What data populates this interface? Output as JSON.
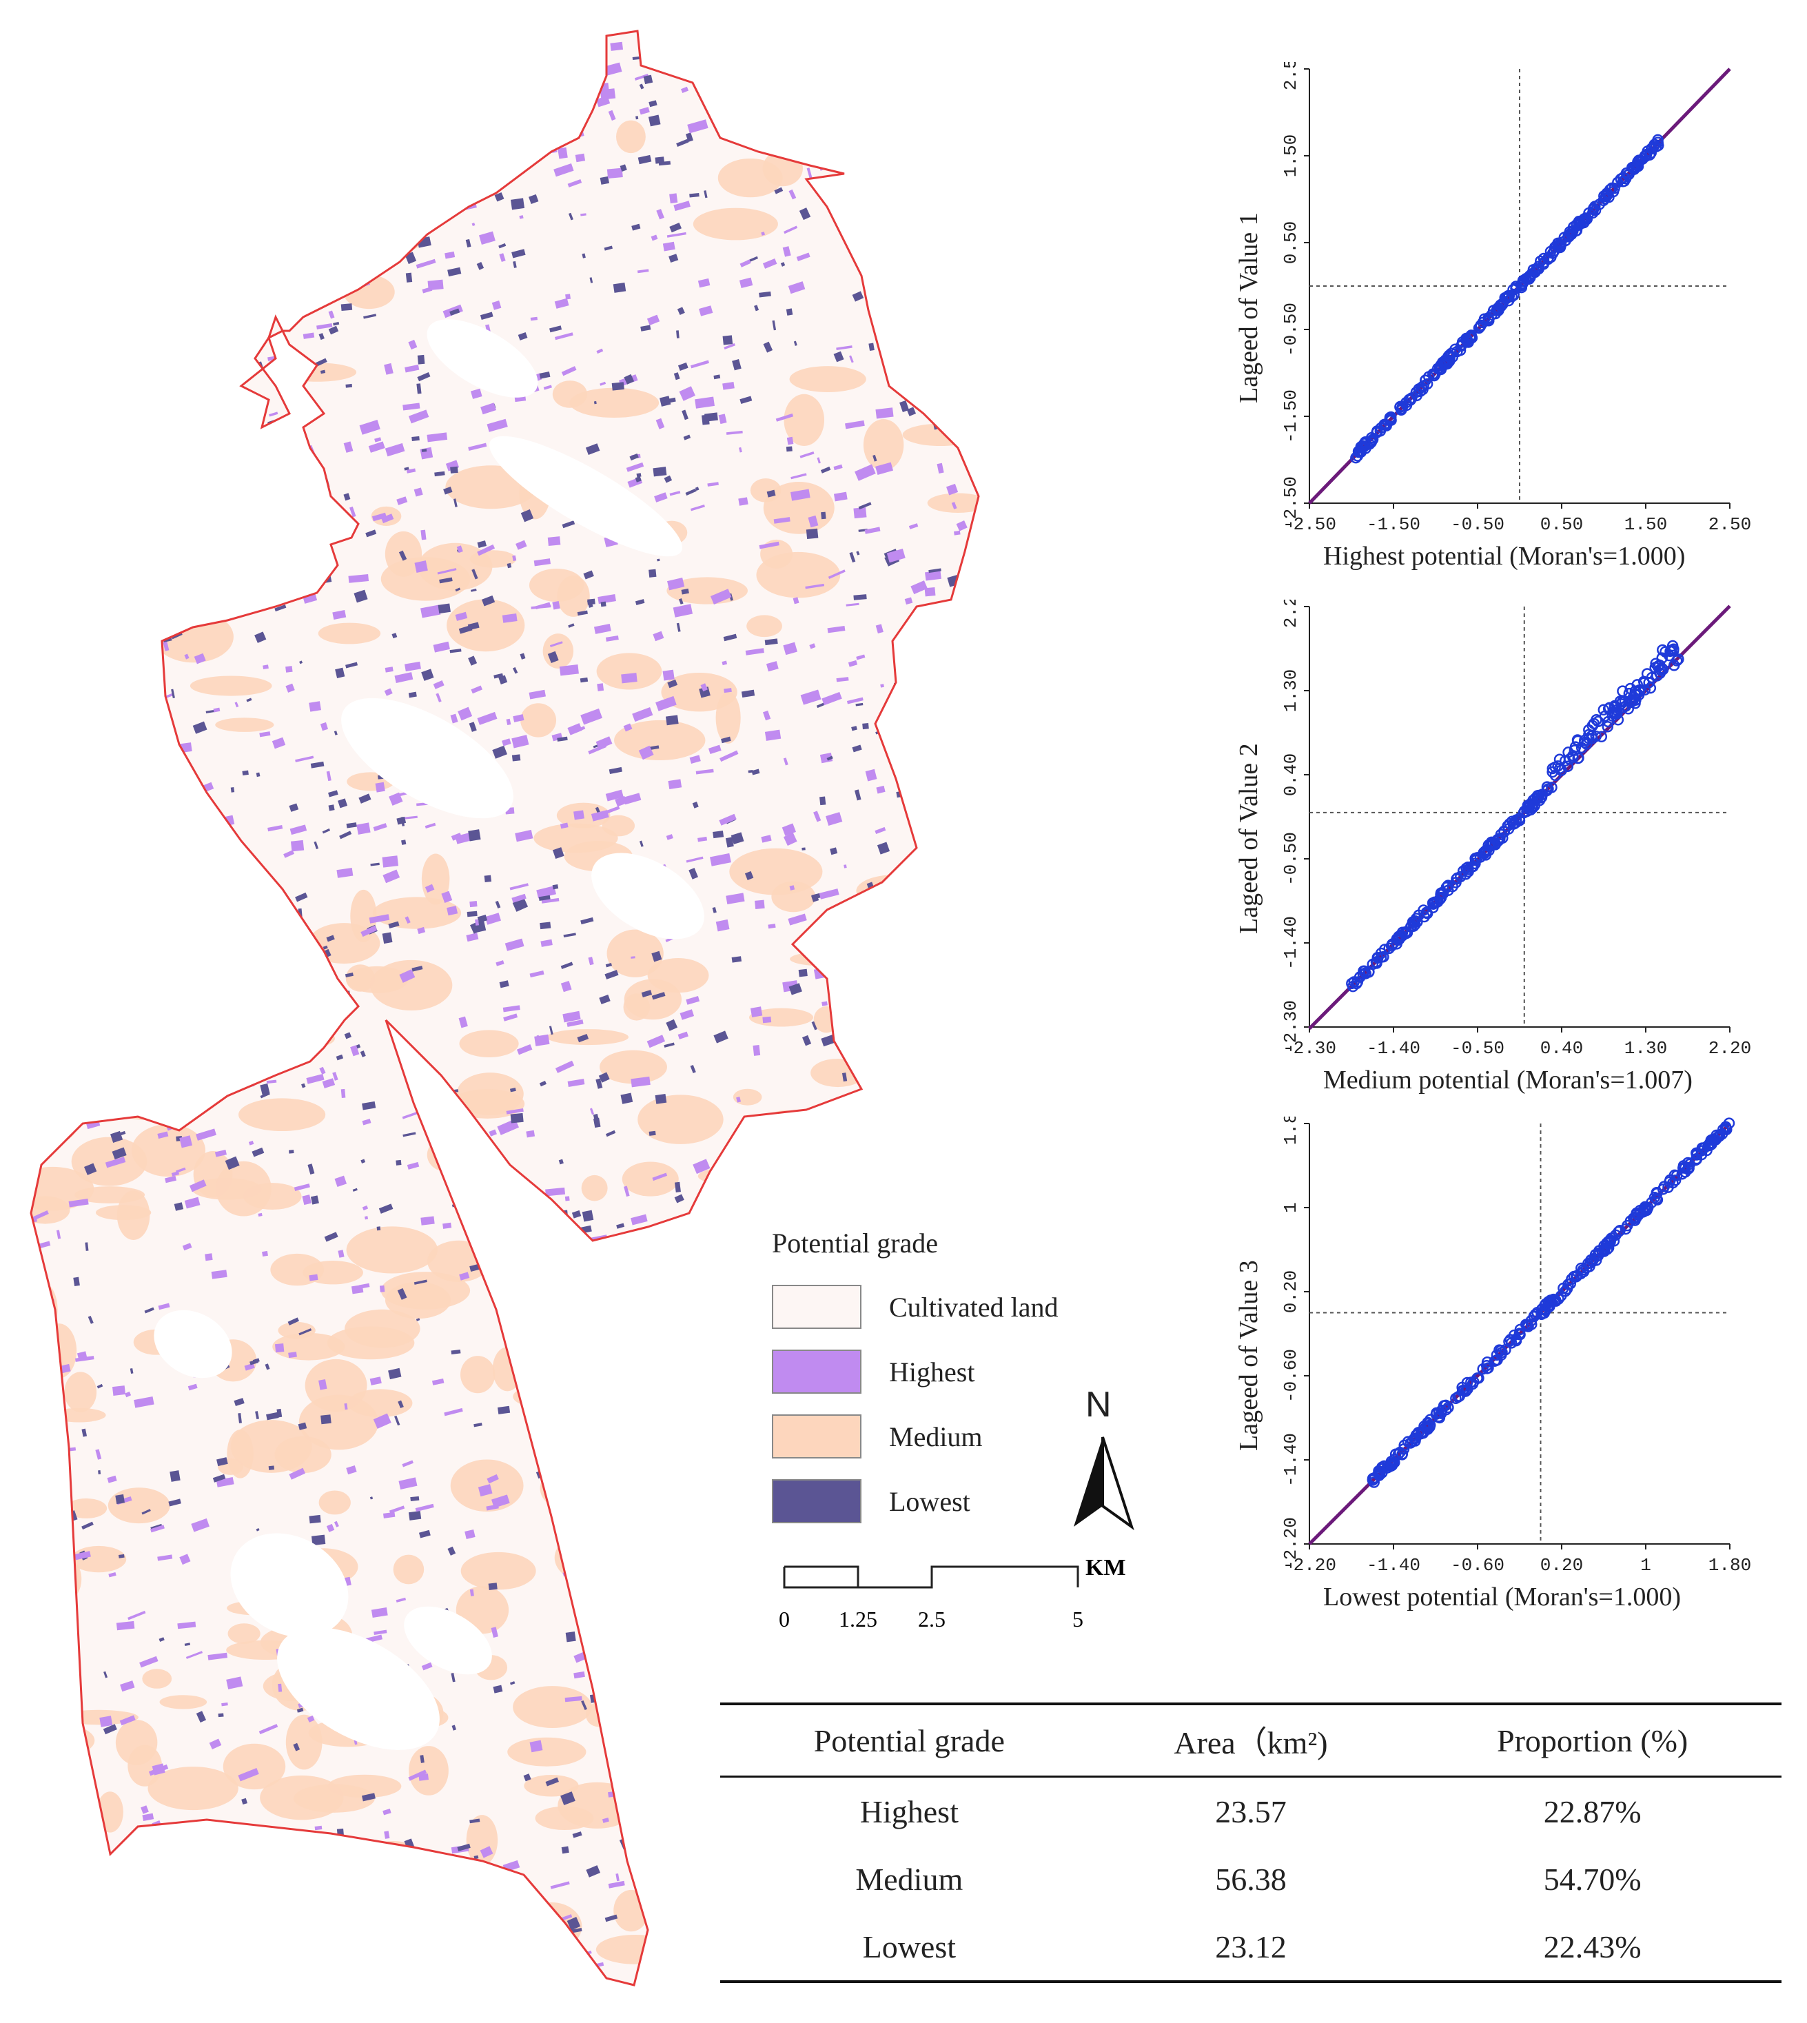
{
  "legend": {
    "title": "Potential grade",
    "items": [
      {
        "key": "cultivated",
        "label": "Cultivated land",
        "color": "#fdf6f4"
      },
      {
        "key": "highest",
        "label": "Highest",
        "color": "#c08bf0"
      },
      {
        "key": "medium",
        "label": "Medium",
        "color": "#fdd6bd"
      },
      {
        "key": "lowest",
        "label": "Lowest",
        "color": "#5b5594"
      }
    ]
  },
  "north": "N",
  "scale": {
    "unit": "KM",
    "labels": [
      "0",
      "1.25",
      "2.5",
      "5"
    ]
  },
  "colors": {
    "boundary": "#e53a3a",
    "points": "#1f3ad9",
    "fit_line": "#6b1a7a"
  },
  "chart_data": [
    {
      "type": "scatter",
      "xlabel": "Highest potential (Moran's=1.000)",
      "ylabel": "Lageed of Value 1",
      "xlim": [
        -2.5,
        2.5
      ],
      "ylim": [
        -2.5,
        2.5
      ],
      "xticks": [
        "-2.50",
        "-1.50",
        "-0.50",
        "0.50",
        "1.50",
        "2.50"
      ],
      "yticks": [
        "-2.50",
        "-1.50",
        "-0.50",
        "0.50",
        "1.50",
        "2.50"
      ],
      "tick_values": [
        -2.5,
        -1.5,
        -0.5,
        0.5,
        1.5,
        2.5
      ],
      "moran": 1.0,
      "point_range": [
        -1.95,
        1.65
      ]
    },
    {
      "type": "scatter",
      "xlabel": "Medium potential (Moran's=1.007)",
      "ylabel": "Lageed of Value 2",
      "xlim": [
        -2.3,
        2.2
      ],
      "ylim": [
        -2.3,
        2.21
      ],
      "xticks": [
        "-2.30",
        "-1.40",
        "-0.50",
        "0.40",
        "1.30",
        "2.20"
      ],
      "yticks": [
        "-2.30",
        "-1.40",
        "-0.50",
        "0.40",
        "1.30",
        "2.21"
      ],
      "tick_values": [
        -2.3,
        -1.4,
        -0.5,
        0.4,
        1.3,
        2.2
      ],
      "moran": 1.007,
      "point_range": [
        -1.85,
        1.65
      ]
    },
    {
      "type": "scatter",
      "xlabel": "Lowest  potential (Moran's=1.000)",
      "ylabel": "Lageed of Value 3",
      "xlim": [
        -2.2,
        1.8
      ],
      "ylim": [
        -2.2,
        1.8
      ],
      "xticks": [
        "-2.20",
        "-1.40",
        "-0.60",
        "0.20",
        "1",
        "1.80"
      ],
      "yticks": [
        "-2.20",
        "-1.40",
        "-0.60",
        "0.20",
        "1",
        "1.80"
      ],
      "tick_values": [
        -2.2,
        -1.4,
        -0.6,
        0.2,
        1.0,
        1.8
      ],
      "moran": 1.0,
      "point_range": [
        -1.6,
        1.8
      ]
    }
  ],
  "table": {
    "headers": [
      "Potential grade",
      "Area（km²)",
      "Proportion (%)"
    ],
    "rows": [
      [
        "Highest",
        "23.57",
        "22.87%"
      ],
      [
        "Medium",
        "56.38",
        "54.70%"
      ],
      [
        "Lowest",
        "23.12",
        "22.43%"
      ]
    ]
  }
}
